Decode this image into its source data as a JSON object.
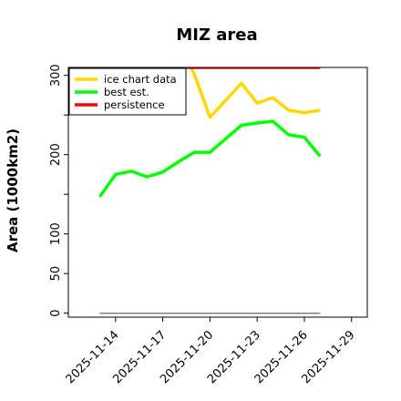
{
  "chart_data": {
    "type": "line",
    "title": "MIZ area",
    "xlabel": "",
    "ylabel": "Area (1000km2)",
    "ylim": [
      -5,
      310
    ],
    "xlim": [
      "2025-11-11",
      "2025-11-30"
    ],
    "yticks": [
      0,
      50,
      100,
      150,
      200,
      250,
      300
    ],
    "ytick_labels": [
      "0",
      "50",
      "100",
      "",
      "200",
      "",
      "300"
    ],
    "xticks": [
      "2025-11-14",
      "2025-11-17",
      "2025-11-20",
      "2025-11-23",
      "2025-11-26",
      "2025-11-29"
    ],
    "grid": false,
    "legend": {
      "placement": "top-left"
    },
    "series": [
      {
        "name": "ice chart data",
        "color": "#FFD700",
        "points": [
          [
            "2025-11-18",
            340
          ],
          [
            "2025-11-19",
            302
          ],
          [
            "2025-11-20",
            247
          ],
          [
            "2025-11-22",
            290
          ],
          [
            "2025-11-23",
            265
          ],
          [
            "2025-11-24",
            272
          ],
          [
            "2025-11-25",
            256
          ],
          [
            "2025-11-26",
            253
          ],
          [
            "2025-11-27",
            256
          ]
        ]
      },
      {
        "name": "best est.",
        "color": "#00FF00",
        "points": [
          [
            "2025-11-13",
            147
          ],
          [
            "2025-11-14",
            175
          ],
          [
            "2025-11-15",
            179
          ],
          [
            "2025-11-16",
            172
          ],
          [
            "2025-11-17",
            178
          ],
          [
            "2025-11-18",
            191
          ],
          [
            "2025-11-19",
            203
          ],
          [
            "2025-11-20",
            203
          ],
          [
            "2025-11-21",
            220
          ],
          [
            "2025-11-22",
            237
          ],
          [
            "2025-11-23",
            240
          ],
          [
            "2025-11-24",
            242
          ],
          [
            "2025-11-25",
            225
          ],
          [
            "2025-11-26",
            222
          ],
          [
            "2025-11-27",
            198
          ]
        ]
      },
      {
        "name": "persistence",
        "color": "#FF0000",
        "points": [
          [
            "2025-11-18",
            310
          ],
          [
            "2025-11-27",
            310
          ]
        ]
      },
      {
        "name": "",
        "color": "#808080",
        "points": [
          [
            "2025-11-13",
            0
          ],
          [
            "2025-11-27",
            0
          ]
        ]
      }
    ]
  }
}
